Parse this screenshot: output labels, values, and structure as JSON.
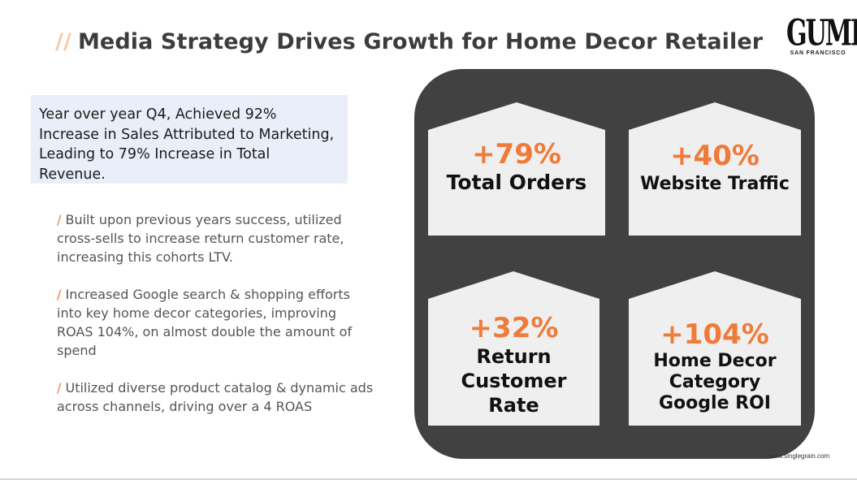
{
  "header": {
    "slashes": "//",
    "title": "Media Strategy Drives Growth for Home Decor Retailer"
  },
  "logo": {
    "wordmark": "GUMP'S",
    "subtitle": "SAN FRANCISCO"
  },
  "highlight": {
    "text": "Year over year Q4, Achieved 92% Increase in Sales Attributed to Marketing, Leading to 79% Increase in Total Revenue."
  },
  "bullets": [
    {
      "marker": "/",
      "text": "Built upon previous years success, utilized cross-sells to increase return customer rate, increasing this cohorts LTV."
    },
    {
      "marker": "/",
      "text": "Increased Google search & shopping efforts into key home decor categories, improving ROAS 104%, on almost double the amount of spend"
    },
    {
      "marker": "/",
      "text": "Utilized diverse product catalog & dynamic ads across channels, driving over a 4 ROAS"
    }
  ],
  "stats": [
    {
      "value": "+79%",
      "label": "Total Orders"
    },
    {
      "value": "+40%",
      "label": "Website Traffic"
    },
    {
      "value": "+32%",
      "label": "Return Customer Rate"
    },
    {
      "value": "+104%",
      "label": "Home Decor Category Google ROI"
    }
  ],
  "colors": {
    "accent": "#ef7b3a",
    "panel": "#414141",
    "card": "#efefef",
    "highlight_bg": "#e9eef9"
  },
  "footer": {
    "url": "www.singlegrain.com"
  }
}
